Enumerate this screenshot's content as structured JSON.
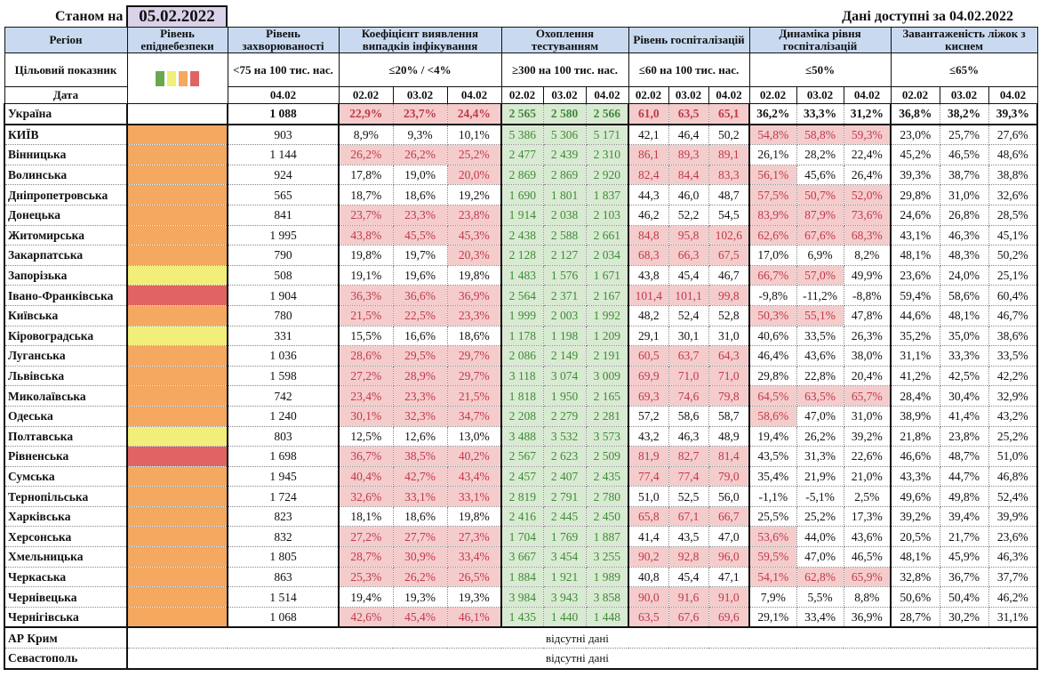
{
  "header": {
    "as_of_label": "Станом на",
    "as_of_date": "05.02.2022",
    "available_label": "Дані доступні за",
    "available_date": "04.02.2022"
  },
  "columns": {
    "region": "Регіон",
    "level": "Рівень епіднебезпеки",
    "incidence": "Рівень захворюваності",
    "detection": "Коефіцієнт виявлення випадків інфікування",
    "testing": "Охоплення тестуванням",
    "hosp": "Рівень госпіталізацій",
    "dynamics": "Динаміка рівня госпіталізацій",
    "beds": "Завантаженість ліжок з киснем"
  },
  "targets": {
    "label": "Цільовий показник",
    "incidence": "<75 на 100 тис. нас.",
    "detection": "≤20% / <4%",
    "testing": "≥300 на 100 тис. нас.",
    "hosp": "≤60 на 100 тис. нас.",
    "dynamics": "≤50%",
    "beds": "≤65%"
  },
  "dates": {
    "label": "Дата",
    "incidence": "04.02",
    "days": [
      "02.02",
      "03.02",
      "04.02"
    ]
  },
  "level_colors": {
    "green": "#6aa84f",
    "yellow": "#f2ee7a",
    "orange": "#f4a860",
    "red": "#e06464"
  },
  "legend_levels": [
    "green",
    "yellow",
    "orange",
    "red"
  ],
  "ukraine": {
    "name": "Україна",
    "incidence": "1 088",
    "detection": [
      "22,9%",
      "23,7%",
      "24,4%"
    ],
    "testing": [
      "2 565",
      "2 580",
      "2 566"
    ],
    "hosp": [
      "61,0",
      "63,5",
      "65,1"
    ],
    "dynamics": [
      "36,2%",
      "33,3%",
      "31,2%"
    ],
    "beds": [
      "36,8%",
      "38,2%",
      "39,3%"
    ]
  },
  "regions": [
    {
      "name": "КИЇВ",
      "level": "orange",
      "incidence": "903",
      "detection": [
        "8,9%",
        "9,3%",
        "10,1%"
      ],
      "testing": [
        "5 386",
        "5 306",
        "5 171"
      ],
      "hosp": [
        "42,1",
        "46,4",
        "50,2"
      ],
      "dynamics": [
        "54,8%",
        "58,8%",
        "59,3%"
      ],
      "beds": [
        "23,0%",
        "25,7%",
        "27,6%"
      ]
    },
    {
      "name": "Вінницька",
      "level": "orange",
      "incidence": "1 144",
      "detection": [
        "26,2%",
        "26,2%",
        "25,2%"
      ],
      "testing": [
        "2 477",
        "2 439",
        "2 310"
      ],
      "hosp": [
        "86,1",
        "89,3",
        "89,1"
      ],
      "dynamics": [
        "26,1%",
        "28,2%",
        "22,4%"
      ],
      "beds": [
        "45,2%",
        "46,5%",
        "48,6%"
      ]
    },
    {
      "name": "Волинська",
      "level": "orange",
      "incidence": "924",
      "detection": [
        "17,8%",
        "19,0%",
        "20,0%"
      ],
      "testing": [
        "2 869",
        "2 869",
        "2 920"
      ],
      "hosp": [
        "82,4",
        "84,4",
        "83,3"
      ],
      "dynamics": [
        "56,1%",
        "45,6%",
        "26,4%"
      ],
      "beds": [
        "39,3%",
        "38,7%",
        "38,8%"
      ]
    },
    {
      "name": "Дніпропетровська",
      "level": "orange",
      "incidence": "565",
      "detection": [
        "18,7%",
        "18,6%",
        "19,2%"
      ],
      "testing": [
        "1 690",
        "1 801",
        "1 837"
      ],
      "hosp": [
        "44,3",
        "46,0",
        "48,7"
      ],
      "dynamics": [
        "57,5%",
        "50,7%",
        "52,0%"
      ],
      "beds": [
        "29,8%",
        "31,0%",
        "32,6%"
      ]
    },
    {
      "name": "Донецька",
      "level": "orange",
      "incidence": "841",
      "detection": [
        "23,7%",
        "23,3%",
        "23,8%"
      ],
      "testing": [
        "1 914",
        "2 038",
        "2 103"
      ],
      "hosp": [
        "46,2",
        "52,2",
        "54,5"
      ],
      "dynamics": [
        "83,9%",
        "87,9%",
        "73,6%"
      ],
      "beds": [
        "24,6%",
        "26,8%",
        "28,5%"
      ]
    },
    {
      "name": "Житомирська",
      "level": "orange",
      "incidence": "1 995",
      "detection": [
        "43,8%",
        "45,5%",
        "45,3%"
      ],
      "testing": [
        "2 438",
        "2 588",
        "2 661"
      ],
      "hosp": [
        "84,8",
        "95,8",
        "102,6"
      ],
      "dynamics": [
        "62,6%",
        "67,6%",
        "68,3%"
      ],
      "beds": [
        "43,1%",
        "46,3%",
        "45,1%"
      ]
    },
    {
      "name": "Закарпатська",
      "level": "orange",
      "incidence": "790",
      "detection": [
        "19,8%",
        "19,7%",
        "20,3%"
      ],
      "testing": [
        "2 128",
        "2 127",
        "2 034"
      ],
      "hosp": [
        "68,3",
        "66,3",
        "67,5"
      ],
      "dynamics": [
        "17,0%",
        "6,9%",
        "8,2%"
      ],
      "beds": [
        "48,1%",
        "48,3%",
        "50,2%"
      ]
    },
    {
      "name": "Запорізька",
      "level": "yellow",
      "incidence": "508",
      "detection": [
        "19,1%",
        "19,6%",
        "19,8%"
      ],
      "testing": [
        "1 483",
        "1 576",
        "1 671"
      ],
      "hosp": [
        "43,8",
        "45,4",
        "46,7"
      ],
      "dynamics": [
        "66,7%",
        "57,0%",
        "49,9%"
      ],
      "beds": [
        "23,6%",
        "24,0%",
        "25,1%"
      ]
    },
    {
      "name": "Івано-Франківська",
      "level": "red",
      "incidence": "1 904",
      "detection": [
        "36,3%",
        "36,6%",
        "36,9%"
      ],
      "testing": [
        "2 564",
        "2 371",
        "2 167"
      ],
      "hosp": [
        "101,4",
        "101,1",
        "99,8"
      ],
      "dynamics": [
        "-9,8%",
        "-11,2%",
        "-8,8%"
      ],
      "beds": [
        "59,4%",
        "58,6%",
        "60,4%"
      ]
    },
    {
      "name": "Київська",
      "level": "orange",
      "incidence": "780",
      "detection": [
        "21,5%",
        "22,5%",
        "23,3%"
      ],
      "testing": [
        "1 999",
        "2 003",
        "1 992"
      ],
      "hosp": [
        "48,2",
        "52,4",
        "52,8"
      ],
      "dynamics": [
        "50,3%",
        "55,1%",
        "47,8%"
      ],
      "beds": [
        "44,6%",
        "48,1%",
        "46,7%"
      ]
    },
    {
      "name": "Кіровоградська",
      "level": "yellow",
      "incidence": "331",
      "detection": [
        "15,5%",
        "16,6%",
        "18,6%"
      ],
      "testing": [
        "1 178",
        "1 198",
        "1 209"
      ],
      "hosp": [
        "29,1",
        "30,1",
        "31,0"
      ],
      "dynamics": [
        "40,6%",
        "33,5%",
        "26,3%"
      ],
      "beds": [
        "35,2%",
        "35,0%",
        "38,6%"
      ]
    },
    {
      "name": "Луганська",
      "level": "orange",
      "incidence": "1 036",
      "detection": [
        "28,6%",
        "29,5%",
        "29,7%"
      ],
      "testing": [
        "2 086",
        "2 149",
        "2 191"
      ],
      "hosp": [
        "60,5",
        "63,7",
        "64,3"
      ],
      "dynamics": [
        "46,4%",
        "43,6%",
        "38,0%"
      ],
      "beds": [
        "31,1%",
        "33,3%",
        "33,5%"
      ]
    },
    {
      "name": "Львівська",
      "level": "orange",
      "incidence": "1 598",
      "detection": [
        "27,2%",
        "28,9%",
        "29,7%"
      ],
      "testing": [
        "3 118",
        "3 074",
        "3 009"
      ],
      "hosp": [
        "69,9",
        "71,0",
        "71,0"
      ],
      "dynamics": [
        "29,8%",
        "22,8%",
        "20,4%"
      ],
      "beds": [
        "41,2%",
        "42,5%",
        "42,2%"
      ]
    },
    {
      "name": "Миколаївська",
      "level": "orange",
      "incidence": "742",
      "detection": [
        "23,4%",
        "23,3%",
        "21,5%"
      ],
      "testing": [
        "1 818",
        "1 950",
        "2 165"
      ],
      "hosp": [
        "69,3",
        "74,6",
        "79,8"
      ],
      "dynamics": [
        "64,5%",
        "63,5%",
        "65,7%"
      ],
      "beds": [
        "28,4%",
        "30,4%",
        "32,9%"
      ]
    },
    {
      "name": "Одеська",
      "level": "orange",
      "incidence": "1 240",
      "detection": [
        "30,1%",
        "32,3%",
        "34,7%"
      ],
      "testing": [
        "2 208",
        "2 279",
        "2 281"
      ],
      "hosp": [
        "57,2",
        "58,6",
        "58,7"
      ],
      "dynamics": [
        "58,6%",
        "47,0%",
        "31,0%"
      ],
      "beds": [
        "38,9%",
        "41,4%",
        "43,2%"
      ]
    },
    {
      "name": "Полтавська",
      "level": "yellow",
      "incidence": "803",
      "detection": [
        "12,5%",
        "12,6%",
        "13,0%"
      ],
      "testing": [
        "3 488",
        "3 532",
        "3 573"
      ],
      "hosp": [
        "43,2",
        "46,3",
        "48,9"
      ],
      "dynamics": [
        "19,4%",
        "26,2%",
        "39,2%"
      ],
      "beds": [
        "21,8%",
        "23,8%",
        "25,2%"
      ]
    },
    {
      "name": "Рівненська",
      "level": "red",
      "incidence": "1 698",
      "detection": [
        "36,7%",
        "38,5%",
        "40,2%"
      ],
      "testing": [
        "2 567",
        "2 623",
        "2 509"
      ],
      "hosp": [
        "81,9",
        "82,7",
        "81,4"
      ],
      "dynamics": [
        "43,5%",
        "31,3%",
        "22,6%"
      ],
      "beds": [
        "46,6%",
        "48,7%",
        "51,0%"
      ]
    },
    {
      "name": "Сумська",
      "level": "orange",
      "incidence": "1 945",
      "detection": [
        "40,4%",
        "42,7%",
        "43,4%"
      ],
      "testing": [
        "2 457",
        "2 407",
        "2 435"
      ],
      "hosp": [
        "77,4",
        "77,4",
        "79,0"
      ],
      "dynamics": [
        "35,4%",
        "21,9%",
        "21,0%"
      ],
      "beds": [
        "43,3%",
        "44,7%",
        "46,8%"
      ]
    },
    {
      "name": "Тернопільська",
      "level": "orange",
      "incidence": "1 724",
      "detection": [
        "32,6%",
        "33,1%",
        "33,1%"
      ],
      "testing": [
        "2 819",
        "2 791",
        "2 780"
      ],
      "hosp": [
        "51,0",
        "52,5",
        "56,0"
      ],
      "dynamics": [
        "-1,1%",
        "-5,1%",
        "2,5%"
      ],
      "beds": [
        "49,6%",
        "49,8%",
        "52,4%"
      ]
    },
    {
      "name": "Харківська",
      "level": "orange",
      "incidence": "823",
      "detection": [
        "18,1%",
        "18,6%",
        "19,8%"
      ],
      "testing": [
        "2 416",
        "2 445",
        "2 450"
      ],
      "hosp": [
        "65,8",
        "67,1",
        "66,7"
      ],
      "dynamics": [
        "25,5%",
        "25,2%",
        "17,3%"
      ],
      "beds": [
        "39,2%",
        "39,4%",
        "39,9%"
      ]
    },
    {
      "name": "Херсонська",
      "level": "orange",
      "incidence": "832",
      "detection": [
        "27,2%",
        "27,7%",
        "27,3%"
      ],
      "testing": [
        "1 704",
        "1 769",
        "1 887"
      ],
      "hosp": [
        "41,4",
        "43,5",
        "47,0"
      ],
      "dynamics": [
        "53,6%",
        "44,0%",
        "43,6%"
      ],
      "beds": [
        "20,5%",
        "21,7%",
        "23,6%"
      ]
    },
    {
      "name": "Хмельницька",
      "level": "orange",
      "incidence": "1 805",
      "detection": [
        "28,7%",
        "30,9%",
        "33,4%"
      ],
      "testing": [
        "3 667",
        "3 454",
        "3 255"
      ],
      "hosp": [
        "90,2",
        "92,8",
        "96,0"
      ],
      "dynamics": [
        "59,5%",
        "47,0%",
        "46,5%"
      ],
      "beds": [
        "48,1%",
        "45,9%",
        "46,3%"
      ]
    },
    {
      "name": "Черкаська",
      "level": "orange",
      "incidence": "863",
      "detection": [
        "25,3%",
        "26,2%",
        "26,5%"
      ],
      "testing": [
        "1 884",
        "1 921",
        "1 989"
      ],
      "hosp": [
        "40,8",
        "45,4",
        "47,1"
      ],
      "dynamics": [
        "54,1%",
        "62,8%",
        "65,9%"
      ],
      "beds": [
        "32,8%",
        "36,7%",
        "37,7%"
      ]
    },
    {
      "name": "Чернівецька",
      "level": "orange",
      "incidence": "1 514",
      "detection": [
        "19,4%",
        "19,3%",
        "19,3%"
      ],
      "testing": [
        "3 984",
        "3 943",
        "3 858"
      ],
      "hosp": [
        "90,0",
        "91,6",
        "91,0"
      ],
      "dynamics": [
        "7,9%",
        "5,5%",
        "8,8%"
      ],
      "beds": [
        "50,6%",
        "50,4%",
        "46,2%"
      ]
    },
    {
      "name": "Чернігівська",
      "level": "orange",
      "incidence": "1 068",
      "detection": [
        "42,6%",
        "45,4%",
        "46,1%"
      ],
      "testing": [
        "1 435",
        "1 440",
        "1 448"
      ],
      "hosp": [
        "63,5",
        "67,6",
        "69,6"
      ],
      "dynamics": [
        "29,1%",
        "33,4%",
        "36,9%"
      ],
      "beds": [
        "28,7%",
        "30,2%",
        "31,1%"
      ]
    }
  ],
  "no_data_regions": [
    {
      "name": "АР Крим",
      "note": "відсутні дані"
    },
    {
      "name": "Севастополь",
      "note": "відсутні дані"
    }
  ]
}
